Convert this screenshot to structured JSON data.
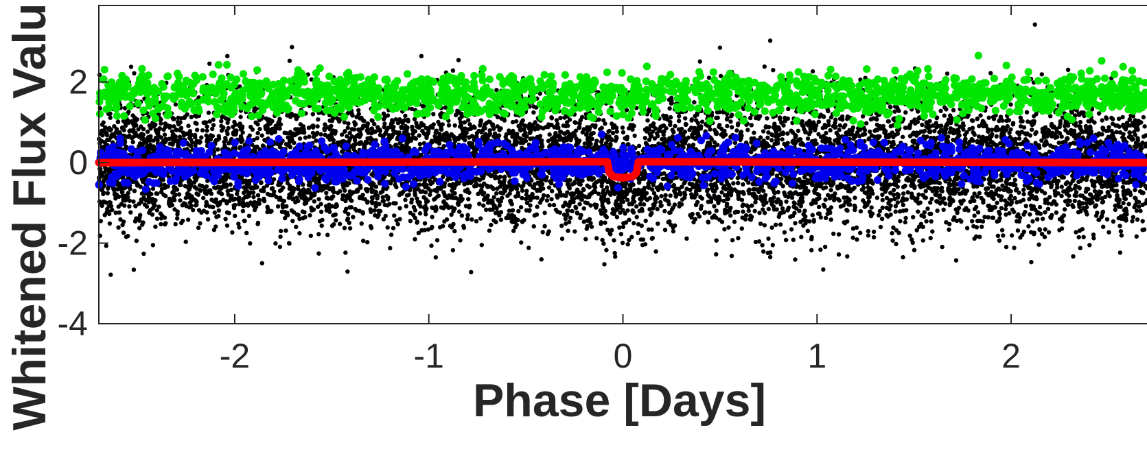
{
  "chart_data": {
    "type": "scatter",
    "title": "",
    "xlabel": "Phase [Days]",
    "ylabel": "Whitened Flux Valu",
    "xlim": [
      -2.7,
      2.7
    ],
    "ylim": [
      -4,
      3.9
    ],
    "xticks": [
      -2,
      -1,
      0,
      1,
      2
    ],
    "yticks": [
      -4,
      -2,
      0,
      2
    ],
    "grid": false,
    "legend": "none",
    "series": [
      {
        "kind": "scatter",
        "color": "#000000",
        "description_of_distribution": "dense cloud of points centered on 0",
        "center": 0,
        "spread_sd": 0.8,
        "approx_count": 9000,
        "extent": [
          -2.7,
          2.7
        ],
        "extreme_range": [
          -3.7,
          3.9
        ]
      },
      {
        "kind": "scatter",
        "color": "#00e600",
        "center": 1.7,
        "spread_sd": 0.25,
        "approx_count": 1600,
        "extent": [
          -2.7,
          2.7
        ]
      },
      {
        "kind": "scatter",
        "color": "#0000ee",
        "center": 0,
        "spread_sd": 0.22,
        "approx_count": 1600,
        "extent": [
          -2.7,
          2.7
        ]
      },
      {
        "kind": "line",
        "color": "#ff0000",
        "points": [
          [
            -2.7,
            0.0
          ],
          [
            -0.08,
            0.02
          ],
          [
            -0.07,
            -0.25
          ],
          [
            -0.05,
            -0.35
          ],
          [
            0.0,
            -0.38
          ],
          [
            0.05,
            -0.35
          ],
          [
            0.07,
            -0.25
          ],
          [
            0.08,
            0.02
          ],
          [
            2.7,
            0.0
          ]
        ]
      }
    ]
  }
}
